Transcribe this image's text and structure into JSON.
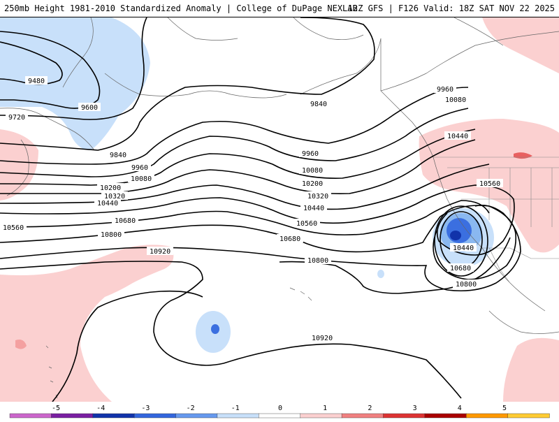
{
  "header": {
    "title": "250mb Height 1981-2010 Standardized Anomaly | College of DuPage NEXLAB",
    "run": "12Z GFS | F126 Valid: 18Z SAT NOV 22 2025"
  },
  "contour_labels": [
    {
      "text": "9480"
    },
    {
      "text": "9600"
    },
    {
      "text": "9720"
    },
    {
      "text": "9840"
    },
    {
      "text": "9840"
    },
    {
      "text": "9960"
    },
    {
      "text": "9960"
    },
    {
      "text": "9960"
    },
    {
      "text": "10080"
    },
    {
      "text": "10080"
    },
    {
      "text": "10080"
    },
    {
      "text": "10200"
    },
    {
      "text": "10200"
    },
    {
      "text": "10320"
    },
    {
      "text": "10320"
    },
    {
      "text": "10440"
    },
    {
      "text": "10440"
    },
    {
      "text": "10440"
    },
    {
      "text": "10440"
    },
    {
      "text": "10560"
    },
    {
      "text": "10560"
    },
    {
      "text": "10560"
    },
    {
      "text": "10680"
    },
    {
      "text": "10680"
    },
    {
      "text": "10680"
    },
    {
      "text": "10800"
    },
    {
      "text": "10800"
    },
    {
      "text": "10800"
    },
    {
      "text": "10920"
    },
    {
      "text": "10920"
    }
  ],
  "colorbar": {
    "ticks": [
      "-5",
      "-4",
      "-3",
      "-2",
      "-1",
      "0",
      "1",
      "2",
      "3",
      "4",
      "5"
    ],
    "colors": [
      "#cc66cc",
      "#7a1fa2",
      "#1133aa",
      "#3366dd",
      "#6699ee",
      "#c8e0fa",
      "#ffffff",
      "#fbd0d0",
      "#f08080",
      "#dd3333",
      "#aa0000",
      "#ff9900",
      "#ffcc33"
    ]
  },
  "colors": {
    "neg1": "#c8e0fa",
    "neg2": "#8ab8f0",
    "neg3": "#3b6fe0",
    "neg4": "#1133aa",
    "pos1": "#fbd0d0",
    "pos2": "#f4a0a0",
    "pos3": "#e86060"
  }
}
